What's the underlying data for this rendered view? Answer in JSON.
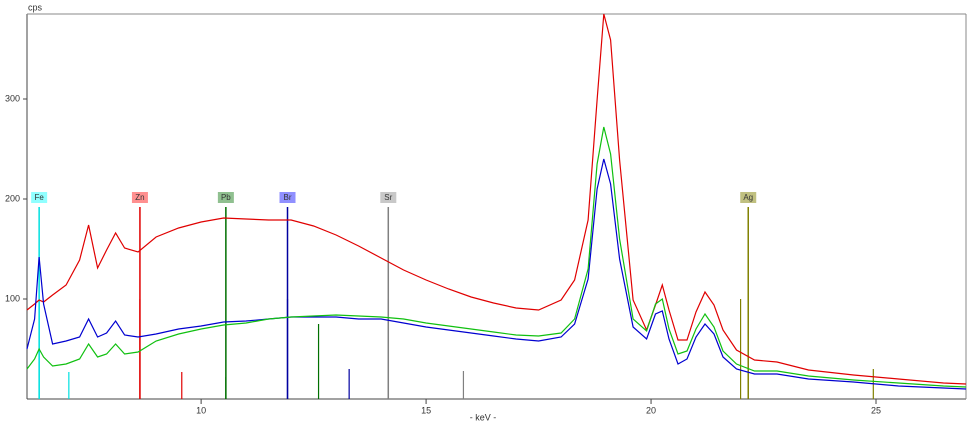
{
  "chart_data": {
    "type": "line",
    "y_label": "cps",
    "x_label": "- keV -",
    "xlim": [
      6.13,
      27.0
    ],
    "ylim": [
      0,
      385
    ],
    "xticks": [
      10,
      15,
      20,
      25
    ],
    "yticks": [
      100,
      200,
      300
    ],
    "x": [
      6.13,
      6.3,
      6.4,
      6.5,
      6.7,
      7.0,
      7.3,
      7.5,
      7.7,
      7.9,
      8.1,
      8.3,
      8.6,
      9.0,
      9.5,
      10.0,
      10.5,
      11.0,
      11.5,
      12.0,
      12.5,
      13.0,
      13.5,
      14.0,
      14.5,
      15.0,
      15.5,
      16.0,
      16.5,
      17.0,
      17.5,
      18.0,
      18.3,
      18.6,
      18.8,
      18.95,
      19.1,
      19.3,
      19.6,
      19.9,
      20.1,
      20.25,
      20.4,
      20.6,
      20.8,
      21.0,
      21.2,
      21.4,
      21.6,
      21.9,
      22.3,
      22.8,
      23.5,
      24.5,
      25.5,
      26.5,
      27.0
    ],
    "series": [
      {
        "color": "#e00000",
        "values": [
          89,
          95,
          99,
          97,
          104,
          114,
          139,
          174,
          131,
          149,
          166,
          151,
          147,
          162,
          171,
          177,
          181,
          180,
          179,
          179,
          173,
          164,
          153,
          141,
          129,
          119,
          110,
          102,
          96,
          91,
          89,
          99,
          119,
          179,
          299,
          385,
          359,
          239,
          99,
          69,
          94,
          114,
          89,
          59,
          59,
          87,
          107,
          94,
          69,
          49,
          39,
          37,
          29,
          24,
          20,
          16,
          15
        ]
      },
      {
        "color": "#0000d0",
        "values": [
          50,
          80,
          142,
          95,
          55,
          58,
          62,
          80,
          62,
          66,
          78,
          64,
          62,
          65,
          70,
          73,
          77,
          78,
          80,
          82,
          82,
          82,
          80,
          80,
          76,
          72,
          69,
          66,
          63,
          60,
          58,
          62,
          75,
          120,
          210,
          240,
          215,
          140,
          72,
          60,
          85,
          88,
          60,
          35,
          40,
          62,
          75,
          65,
          42,
          30,
          25,
          25,
          20,
          17,
          13,
          11,
          10
        ]
      },
      {
        "color": "#10c010",
        "values": [
          30,
          40,
          50,
          42,
          33,
          35,
          40,
          55,
          42,
          45,
          55,
          45,
          47,
          58,
          65,
          70,
          74,
          76,
          80,
          82,
          83,
          84,
          83,
          82,
          80,
          76,
          73,
          70,
          67,
          64,
          63,
          66,
          80,
          130,
          235,
          272,
          245,
          160,
          80,
          68,
          95,
          100,
          70,
          45,
          48,
          70,
          85,
          72,
          48,
          35,
          28,
          28,
          23,
          19,
          16,
          13,
          12
        ]
      }
    ],
    "sticks": [
      {
        "energy": 6.4,
        "height": 100,
        "color": "#00e0e0"
      },
      {
        "energy": 7.06,
        "height": 27,
        "color": "#00e0e0"
      },
      {
        "energy": 8.64,
        "height": 100,
        "color": "#e00000"
      },
      {
        "energy": 9.57,
        "height": 27,
        "color": "#e00000"
      },
      {
        "energy": 10.55,
        "height": 22,
        "color": "#007000"
      },
      {
        "energy": 12.61,
        "height": 75,
        "color": "#007000"
      },
      {
        "energy": 11.92,
        "height": 100,
        "color": "#0000a0"
      },
      {
        "energy": 13.29,
        "height": 30,
        "color": "#0000a0"
      },
      {
        "energy": 14.16,
        "height": 100,
        "color": "#808080"
      },
      {
        "energy": 15.83,
        "height": 28,
        "color": "#808080"
      },
      {
        "energy": 21.99,
        "height": 100,
        "color": "#808000"
      },
      {
        "energy": 24.94,
        "height": 30,
        "color": "#808000"
      }
    ],
    "markers": [
      {
        "label": "Fe",
        "energy": 6.4,
        "color": "#00e0e0",
        "label_color": "#90ffff"
      },
      {
        "label": "Zn",
        "energy": 8.64,
        "color": "#e00000",
        "label_color": "#ff9090"
      },
      {
        "label": "Pb",
        "energy": 10.55,
        "color": "#007000",
        "label_color": "#90c090"
      },
      {
        "label": "Br",
        "energy": 11.92,
        "color": "#0000a0",
        "label_color": "#9090ff"
      },
      {
        "label": "Sr",
        "energy": 14.16,
        "color": "#808080",
        "label_color": "#c8c8c8"
      },
      {
        "label": "Ag",
        "energy": 22.16,
        "color": "#808000",
        "label_color": "#c0c080"
      }
    ]
  }
}
